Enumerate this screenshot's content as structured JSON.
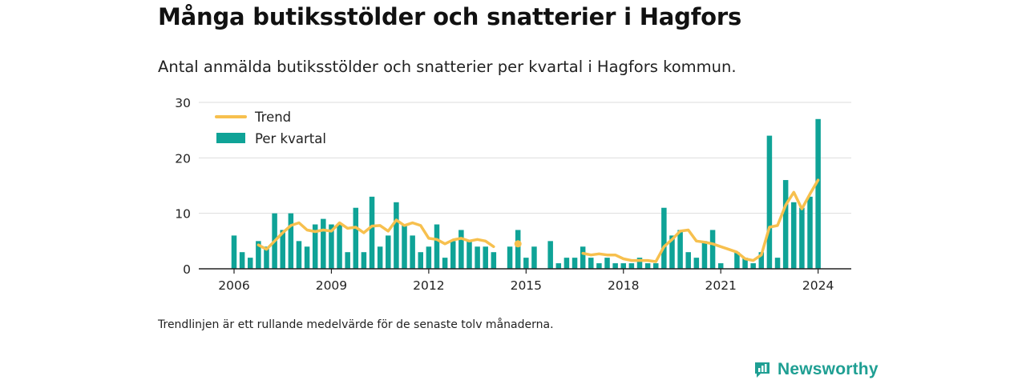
{
  "title": "Många butiksstölder och snatterier i Hagfors",
  "subtitle": "Antal anmälda butiksstölder och snatterier per kvartal i Hagfors kommun.",
  "footnote": "Trendlinjen är ett rullande medelvärde för de senaste tolv månaderna.",
  "brand": {
    "name": "Newsworthy",
    "icon": "newsworthy-logo-icon",
    "color": "#1f9f93"
  },
  "colors": {
    "bar": "#0fa397",
    "trend": "#f7c04e",
    "grid": "#dddddd",
    "axis": "#222222"
  },
  "chart_data": {
    "type": "bar",
    "grid": true,
    "legend_position": "top-left",
    "ylim": [
      0,
      30
    ],
    "y_ticks": [
      0,
      10,
      20,
      30
    ],
    "x_ticks": [
      "2006",
      "2009",
      "2012",
      "2015",
      "2018",
      "2021",
      "2024"
    ],
    "categories": [
      "2006 Q1",
      "2006 Q2",
      "2006 Q3",
      "2006 Q4",
      "2007 Q1",
      "2007 Q2",
      "2007 Q3",
      "2007 Q4",
      "2008 Q1",
      "2008 Q2",
      "2008 Q3",
      "2008 Q4",
      "2009 Q1",
      "2009 Q2",
      "2009 Q3",
      "2009 Q4",
      "2010 Q1",
      "2010 Q2",
      "2010 Q3",
      "2010 Q4",
      "2011 Q1",
      "2011 Q2",
      "2011 Q3",
      "2011 Q4",
      "2012 Q1",
      "2012 Q2",
      "2012 Q3",
      "2012 Q4",
      "2013 Q1",
      "2013 Q2",
      "2013 Q3",
      "2013 Q4",
      "2014 Q1",
      "2014 Q2",
      "2014 Q3",
      "2014 Q4",
      "2015 Q1",
      "2015 Q2",
      "2015 Q3",
      "2015 Q4",
      "2016 Q1",
      "2016 Q2",
      "2016 Q3",
      "2016 Q4",
      "2017 Q1",
      "2017 Q2",
      "2017 Q3",
      "2017 Q4",
      "2018 Q1",
      "2018 Q2",
      "2018 Q3",
      "2018 Q4",
      "2019 Q1",
      "2019 Q2",
      "2019 Q3",
      "2019 Q4",
      "2020 Q1",
      "2020 Q2",
      "2020 Q3",
      "2020 Q4",
      "2021 Q1",
      "2021 Q2",
      "2021 Q3",
      "2021 Q4",
      "2022 Q1",
      "2022 Q2",
      "2022 Q3",
      "2022 Q4",
      "2023 Q1",
      "2023 Q2",
      "2023 Q3",
      "2023 Q4",
      "2024 Q1"
    ],
    "series": [
      {
        "name": "Per kvartal",
        "type": "bar",
        "values": [
          6,
          3,
          2,
          5,
          4,
          10,
          7,
          10,
          5,
          4,
          8,
          9,
          8,
          8,
          3,
          11,
          3,
          13,
          4,
          6,
          12,
          8,
          6,
          3,
          4,
          8,
          2,
          5,
          7,
          5,
          4,
          4,
          3,
          0,
          4,
          7,
          2,
          4,
          0,
          5,
          1,
          2,
          2,
          4,
          2,
          1,
          2,
          1,
          1,
          1,
          2,
          1,
          1,
          11,
          6,
          7,
          3,
          2,
          5,
          7,
          1,
          0,
          3,
          2,
          1,
          3,
          24,
          2,
          16,
          12,
          11,
          13,
          27
        ]
      },
      {
        "name": "Trend",
        "type": "line",
        "values": [
          null,
          null,
          null,
          4.3,
          3.5,
          5.0,
          6.5,
          7.8,
          8.3,
          7.0,
          6.7,
          7.0,
          6.8,
          8.3,
          7.3,
          7.5,
          6.5,
          7.7,
          7.8,
          6.8,
          8.8,
          7.8,
          8.3,
          7.8,
          5.5,
          5.3,
          4.5,
          5.2,
          5.5,
          5.0,
          5.3,
          5.0,
          4.0,
          null,
          null,
          4.5,
          null,
          null,
          null,
          null,
          null,
          null,
          null,
          2.8,
          2.5,
          2.7,
          2.5,
          2.5,
          1.8,
          1.5,
          1.5,
          1.5,
          1.3,
          4.0,
          5.3,
          6.8,
          7.0,
          5.0,
          4.8,
          4.5,
          4.0,
          3.5,
          3.0,
          1.8,
          1.5,
          2.5,
          7.5,
          7.8,
          11.5,
          13.8,
          10.8,
          13.5,
          16.0
        ]
      }
    ]
  }
}
